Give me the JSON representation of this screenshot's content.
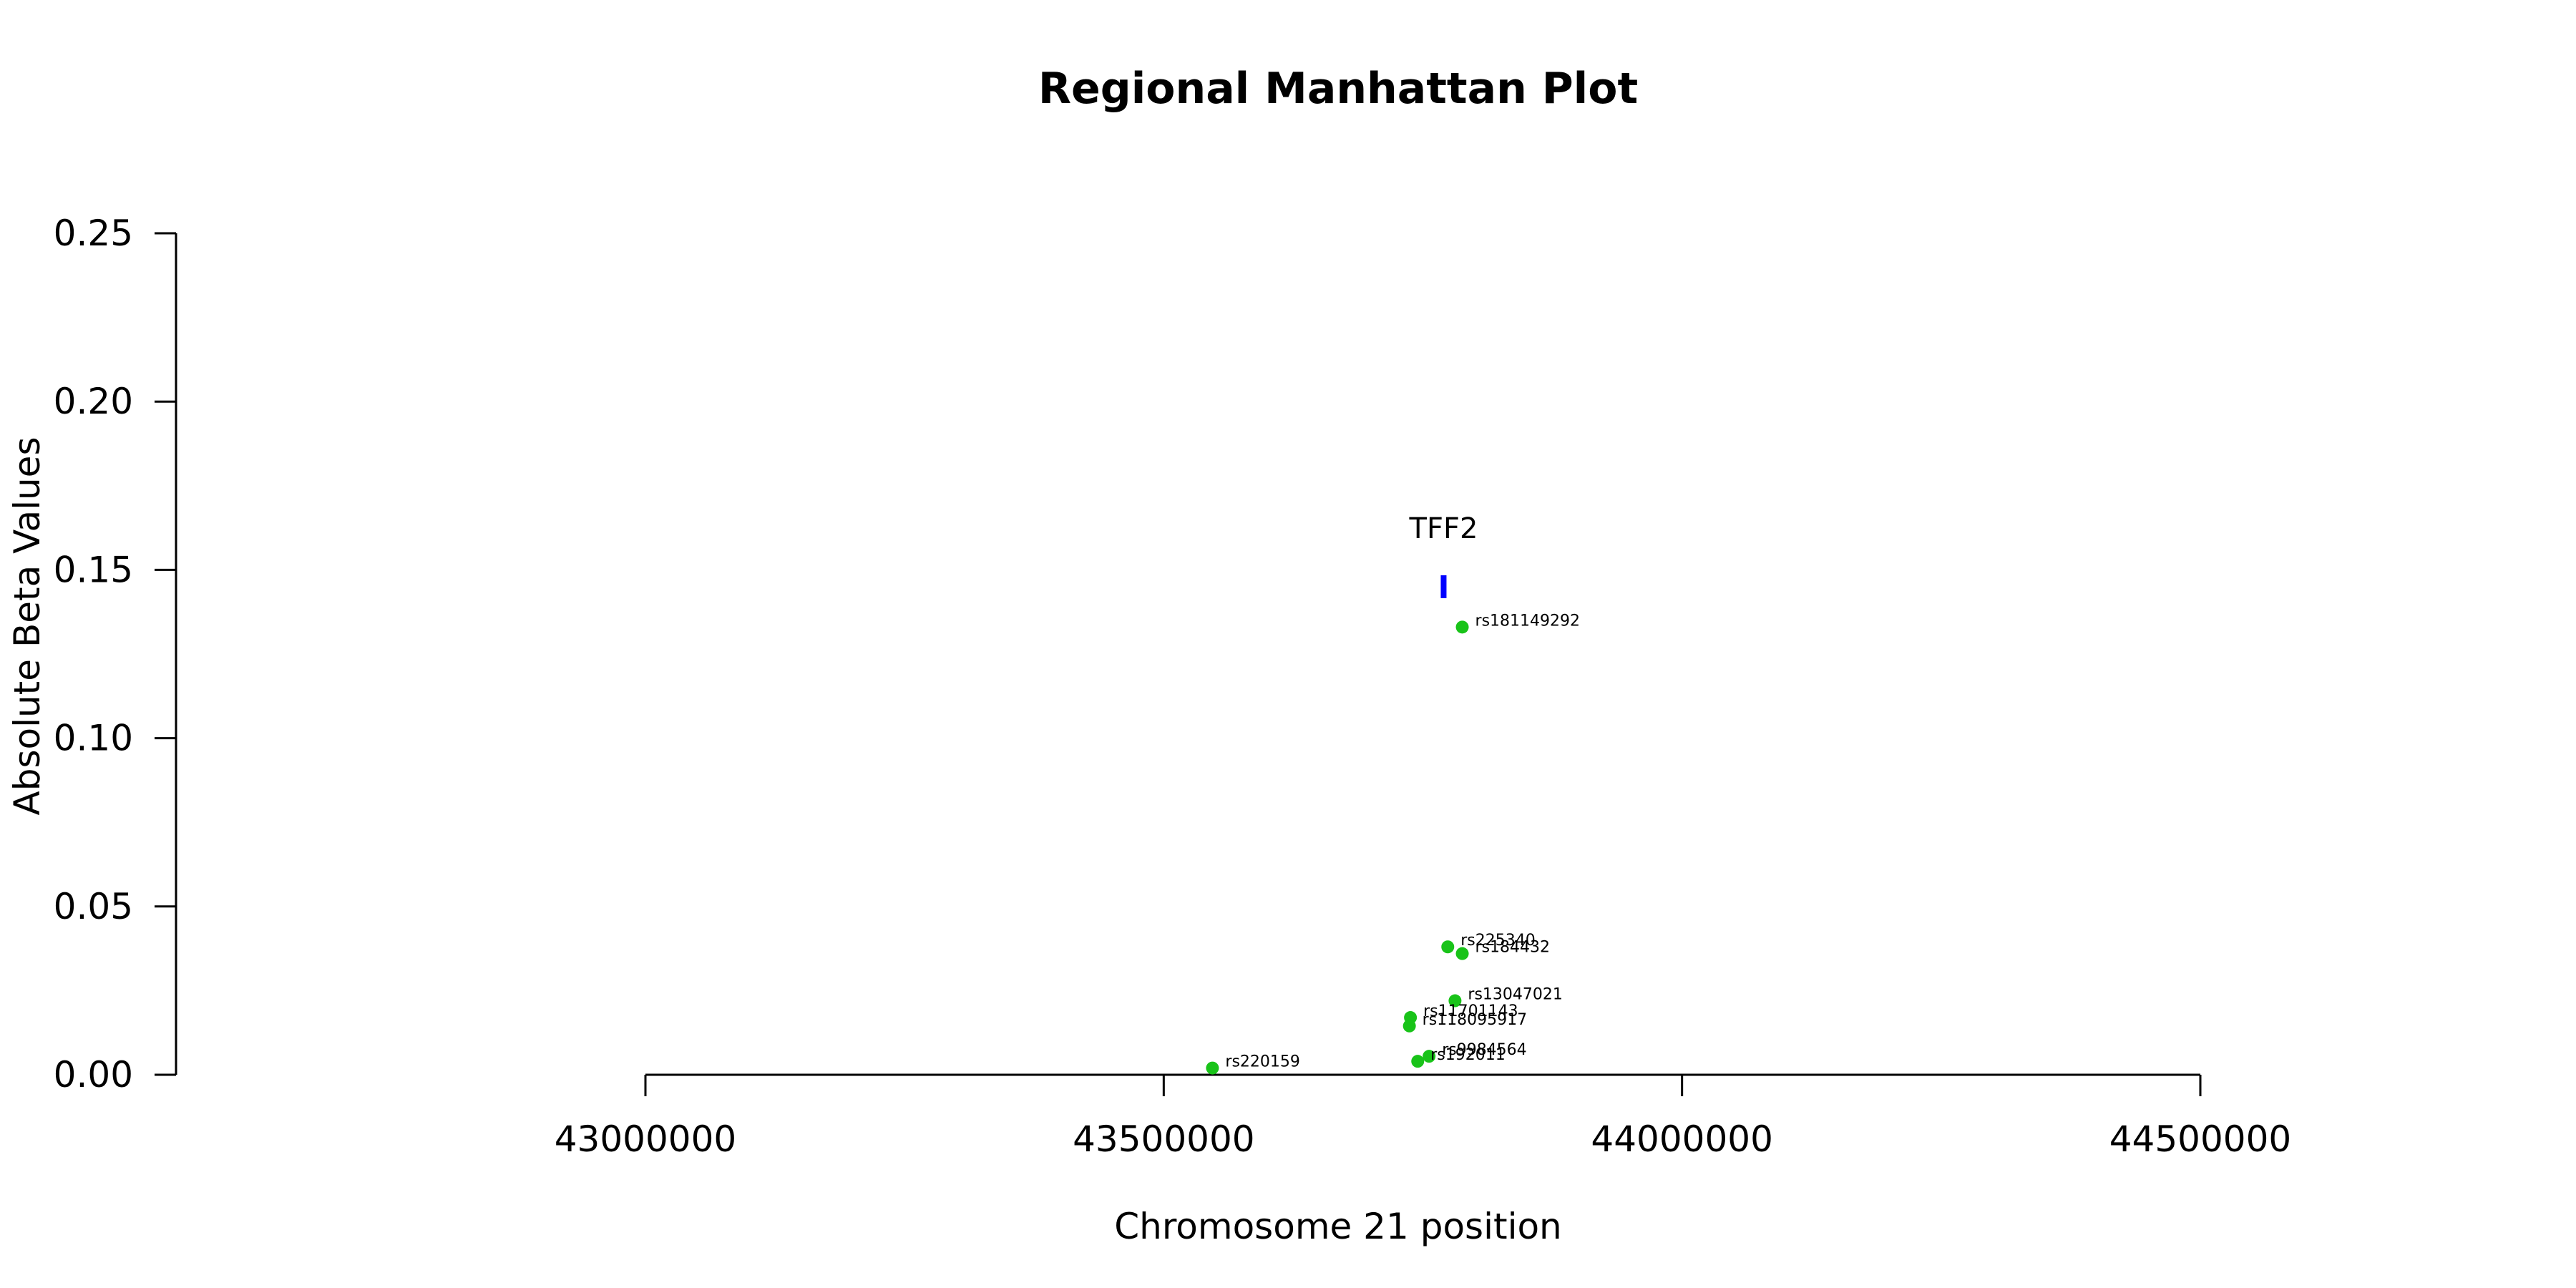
{
  "chart_data": {
    "type": "scatter",
    "title": "Regional Manhattan Plot",
    "xlabel": "Chromosome 21 position",
    "ylabel": "Absolute Beta Values",
    "xlim": [
      43000000,
      44500000
    ],
    "ylim": [
      0,
      0.25
    ],
    "x_ticks": [
      43000000,
      43500000,
      44000000,
      44500000
    ],
    "x_tick_labels": [
      "43000000",
      "43500000",
      "44000000",
      "44500000"
    ],
    "y_ticks": [
      0,
      0.05,
      0.1,
      0.15,
      0.2,
      0.25
    ],
    "y_tick_labels": [
      "0.00",
      "0.05",
      "0.10",
      "0.15",
      "0.20",
      "0.25"
    ],
    "grid": false,
    "point_color": "#19C319",
    "gene_color": "#0000FF",
    "genes": [
      {
        "name": "TFF2",
        "x": 43770000,
        "y": 0.145
      }
    ],
    "points": [
      {
        "label": "rs181149292",
        "x": 43788000,
        "y": 0.133
      },
      {
        "label": "rs225340",
        "x": 43774000,
        "y": 0.038
      },
      {
        "label": "rs184432",
        "x": 43788000,
        "y": 0.036
      },
      {
        "label": "rs13047021",
        "x": 43781000,
        "y": 0.022
      },
      {
        "label": "rs11701143",
        "x": 43738000,
        "y": 0.017
      },
      {
        "label": "rs118095917",
        "x": 43737000,
        "y": 0.0145
      },
      {
        "label": "rs9984564",
        "x": 43756000,
        "y": 0.0055
      },
      {
        "label": "rs192011",
        "x": 43745000,
        "y": 0.004
      },
      {
        "label": "rs220159",
        "x": 43547000,
        "y": 0.002
      }
    ]
  }
}
